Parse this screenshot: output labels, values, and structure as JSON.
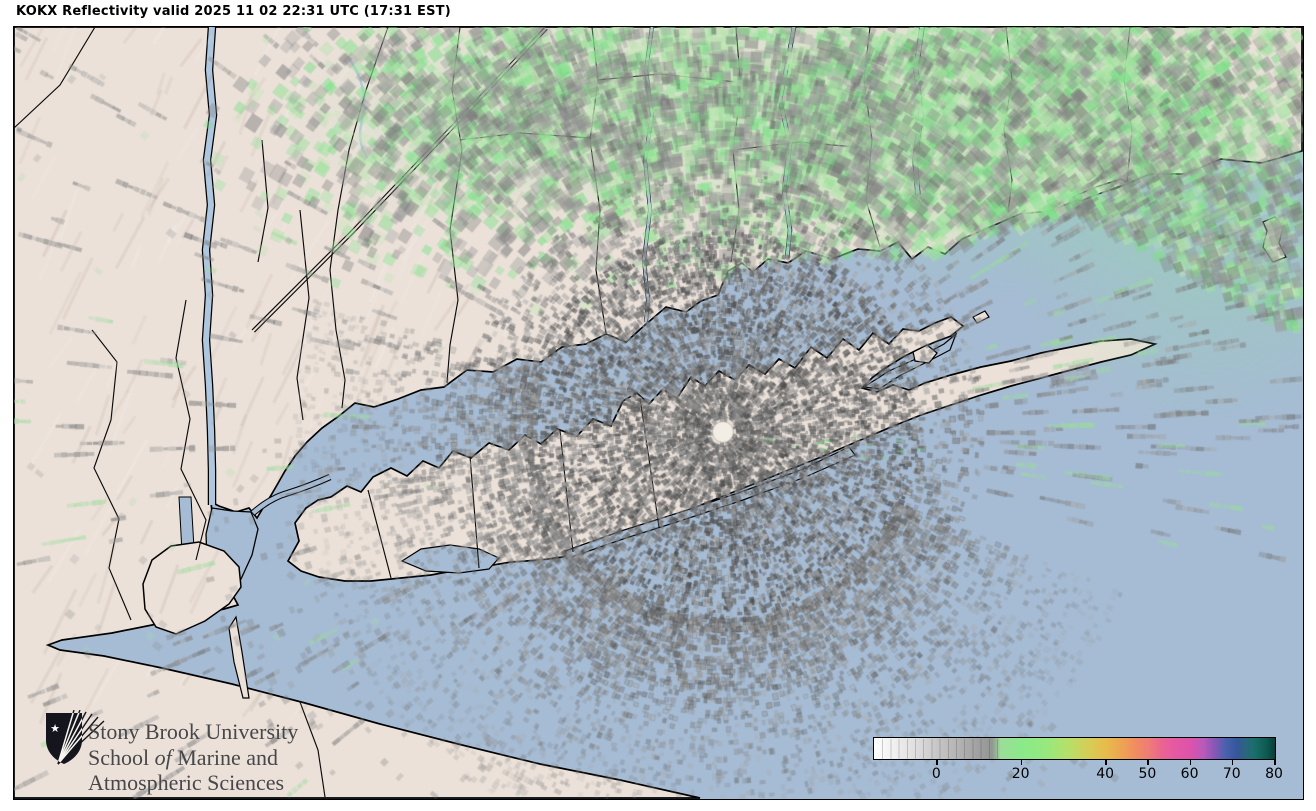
{
  "title": "KOKX Reflectivity valid 2025 11 02 22:31 UTC (17:31 EST)",
  "station": "KOKX",
  "logo": {
    "line1": "Stony Brook University",
    "line2_pre": "School ",
    "line2_italic": "of",
    "line2_post": " Marine and",
    "line3": "Atmospheric Sciences"
  },
  "colorbar": {
    "value_min": -15,
    "value_max": 80,
    "tick_values": [
      0,
      20,
      40,
      50,
      60,
      70,
      80
    ],
    "tick_labels": [
      "0",
      "20",
      "40",
      "50",
      "60",
      "70",
      "80"
    ],
    "stops": [
      [
        -15,
        "#ffffff"
      ],
      [
        -10,
        "#efefef"
      ],
      [
        -5,
        "#dedede"
      ],
      [
        0,
        "#c6c6c6"
      ],
      [
        5,
        "#b3b3b3"
      ],
      [
        10,
        "#9f9f9f"
      ],
      [
        13,
        "#929692"
      ],
      [
        15,
        "#9cdd9a"
      ],
      [
        20,
        "#8aea8a"
      ],
      [
        26,
        "#98e87d"
      ],
      [
        31,
        "#b5e069"
      ],
      [
        36,
        "#d6cd55"
      ],
      [
        40,
        "#e7bb4c"
      ],
      [
        44,
        "#eda253"
      ],
      [
        47,
        "#f08c60"
      ],
      [
        50,
        "#ef7d75"
      ],
      [
        53,
        "#eb6590"
      ],
      [
        56,
        "#e659a2"
      ],
      [
        60,
        "#dc53ab"
      ],
      [
        63,
        "#b95ab9"
      ],
      [
        65,
        "#9457b8"
      ],
      [
        67,
        "#6b5bb0"
      ],
      [
        68,
        "#4c62ae"
      ],
      [
        71,
        "#35579b"
      ],
      [
        73,
        "#2b657f"
      ],
      [
        75,
        "#1a6f6c"
      ],
      [
        78,
        "#0e5a50"
      ],
      [
        80,
        "#073f36"
      ]
    ]
  },
  "colors": {
    "water": "#a6bcd4",
    "land": "#ebe1d9",
    "terrain_shade": "#9e8072",
    "precip_green": "#8aea8a",
    "echo_gray": "#8a8a8a",
    "coast": "#000000",
    "logo_ink": "#15151d"
  }
}
